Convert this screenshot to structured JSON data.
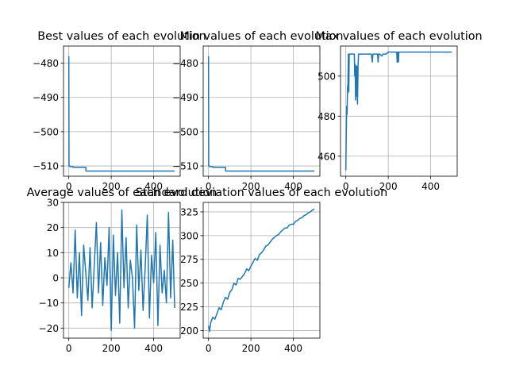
{
  "chart_data": [
    {
      "type": "line",
      "title": "Best values of each evolution",
      "xlabel": "",
      "ylabel": "",
      "xlim": [
        -25,
        525
      ],
      "ylim": [
        -513,
        -475
      ],
      "xticks": [
        0,
        200,
        400
      ],
      "yticks": [
        -510,
        -500,
        -490,
        -480
      ],
      "grid": true,
      "x": [
        0,
        1,
        2,
        3,
        4,
        5,
        20,
        21,
        80,
        81,
        200,
        300,
        400,
        499
      ],
      "series": [
        {
          "values": [
            -478,
            -510,
            -510,
            -510,
            -510,
            -510.2,
            -510.2,
            -510.4,
            -510.4,
            -511.5,
            -511.5,
            -511.5,
            -511.5,
            -511.5
          ]
        }
      ]
    },
    {
      "type": "line",
      "title": "Min values of each evolution",
      "xlabel": "",
      "ylabel": "",
      "xlim": [
        -25,
        525
      ],
      "ylim": [
        -513,
        -475
      ],
      "xticks": [
        0,
        200,
        400
      ],
      "yticks": [
        -510,
        -500,
        -490,
        -480
      ],
      "grid": true,
      "x": [
        0,
        1,
        2,
        3,
        4,
        5,
        20,
        21,
        80,
        81,
        200,
        300,
        400,
        499
      ],
      "series": [
        {
          "values": [
            -478,
            -510,
            -510,
            -510,
            -510,
            -510.2,
            -510.2,
            -510.4,
            -510.4,
            -511.5,
            -511.5,
            -511.5,
            -511.5,
            -511.5
          ]
        }
      ]
    },
    {
      "type": "line",
      "title": "Max values of each evolution",
      "xlabel": "",
      "ylabel": "",
      "xlim": [
        -25,
        525
      ],
      "ylim": [
        450,
        515
      ],
      "xticks": [
        0,
        200,
        400
      ],
      "yticks": [
        460,
        480,
        500
      ],
      "grid": true,
      "x": [
        0,
        2,
        4,
        6,
        8,
        10,
        12,
        14,
        16,
        18,
        20,
        25,
        30,
        35,
        40,
        42,
        44,
        46,
        48,
        50,
        52,
        55,
        58,
        60,
        62,
        65,
        70,
        80,
        100,
        120,
        125,
        128,
        130,
        140,
        150,
        152,
        155,
        160,
        170,
        175,
        180,
        190,
        200,
        230,
        240,
        242,
        245,
        248,
        250,
        300,
        400,
        499
      ],
      "series": [
        {
          "values": [
            453,
            470,
            485,
            481,
            494,
            496,
            511,
            492,
            511,
            511,
            511,
            511,
            511,
            511,
            511,
            500,
            506,
            488,
            505,
            490,
            505,
            486,
            506,
            511,
            511,
            511,
            511,
            511,
            511,
            511,
            507,
            511,
            511,
            511,
            511,
            507,
            511,
            511,
            510,
            511,
            511,
            511,
            512,
            512,
            512,
            507,
            512,
            507,
            512,
            512,
            512,
            512
          ]
        }
      ]
    },
    {
      "type": "line",
      "title": "Average values of each evolution",
      "xlabel": "",
      "ylabel": "",
      "xlim": [
        -25,
        525
      ],
      "ylim": [
        -24,
        30
      ],
      "xticks": [
        0,
        200,
        400
      ],
      "yticks": [
        -20,
        -10,
        0,
        10,
        20,
        30
      ],
      "grid": true,
      "x": [
        0,
        10,
        20,
        30,
        40,
        50,
        60,
        70,
        80,
        90,
        100,
        110,
        120,
        130,
        140,
        150,
        160,
        170,
        180,
        190,
        200,
        210,
        220,
        230,
        240,
        250,
        260,
        270,
        280,
        290,
        300,
        310,
        320,
        330,
        340,
        350,
        360,
        370,
        380,
        390,
        400,
        410,
        420,
        430,
        440,
        450,
        460,
        470,
        480,
        490,
        499
      ],
      "series": [
        {
          "values": [
            -4,
            6,
            -6,
            19,
            -8,
            10,
            -15,
            13,
            2,
            -9,
            12,
            -12,
            5,
            22,
            -6,
            14,
            -11,
            8,
            -3,
            20,
            -21,
            17,
            -7,
            10,
            -18,
            27,
            -4,
            16,
            -12,
            7,
            0,
            -20,
            21,
            -5,
            11,
            -13,
            4,
            25,
            -16,
            9,
            -2,
            18,
            -19,
            13,
            -6,
            3,
            -10,
            26,
            -8,
            15,
            -12
          ]
        }
      ]
    },
    {
      "type": "line",
      "title": "Standard deviation values of each evolution",
      "xlabel": "",
      "ylabel": "",
      "xlim": [
        -25,
        525
      ],
      "ylim": [
        192,
        335
      ],
      "xticks": [
        0,
        200,
        400
      ],
      "yticks": [
        200,
        225,
        250,
        275,
        300,
        325
      ],
      "grid": true,
      "x": [
        0,
        5,
        10,
        20,
        30,
        40,
        50,
        60,
        70,
        80,
        90,
        100,
        110,
        120,
        130,
        140,
        150,
        160,
        170,
        180,
        190,
        200,
        210,
        220,
        230,
        240,
        250,
        260,
        270,
        280,
        290,
        300,
        310,
        320,
        330,
        340,
        350,
        360,
        370,
        380,
        390,
        400,
        410,
        420,
        430,
        440,
        450,
        460,
        470,
        480,
        490,
        499
      ],
      "series": [
        {
          "values": [
            205,
            199,
            208,
            214,
            212,
            218,
            224,
            222,
            230,
            235,
            233,
            240,
            243,
            250,
            248,
            255,
            254,
            257,
            260,
            265,
            263,
            268,
            272,
            276,
            274,
            280,
            282,
            285,
            289,
            290,
            293,
            296,
            298,
            300,
            301,
            304,
            306,
            308,
            308,
            311,
            312,
            312,
            315,
            316,
            318,
            319,
            321,
            322,
            324,
            325,
            327,
            328
          ]
        }
      ]
    }
  ]
}
